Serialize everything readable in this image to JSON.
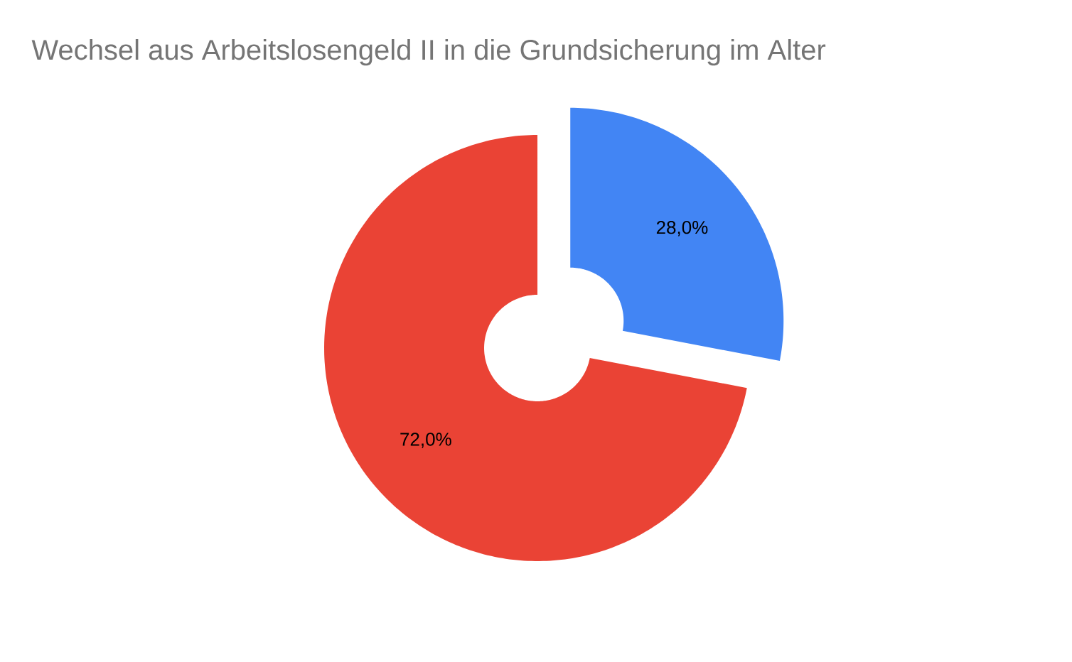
{
  "chart_data": {
    "type": "donut",
    "title": "Wechsel aus Arbeitslosengeld II in die Grundsicherung im Alter",
    "categories": [
      null,
      null
    ],
    "values": [
      28.0,
      72.0
    ],
    "colors": [
      "#4285f4",
      "#ea4335"
    ],
    "value_labels": [
      "28,0%",
      "72,0%"
    ]
  }
}
